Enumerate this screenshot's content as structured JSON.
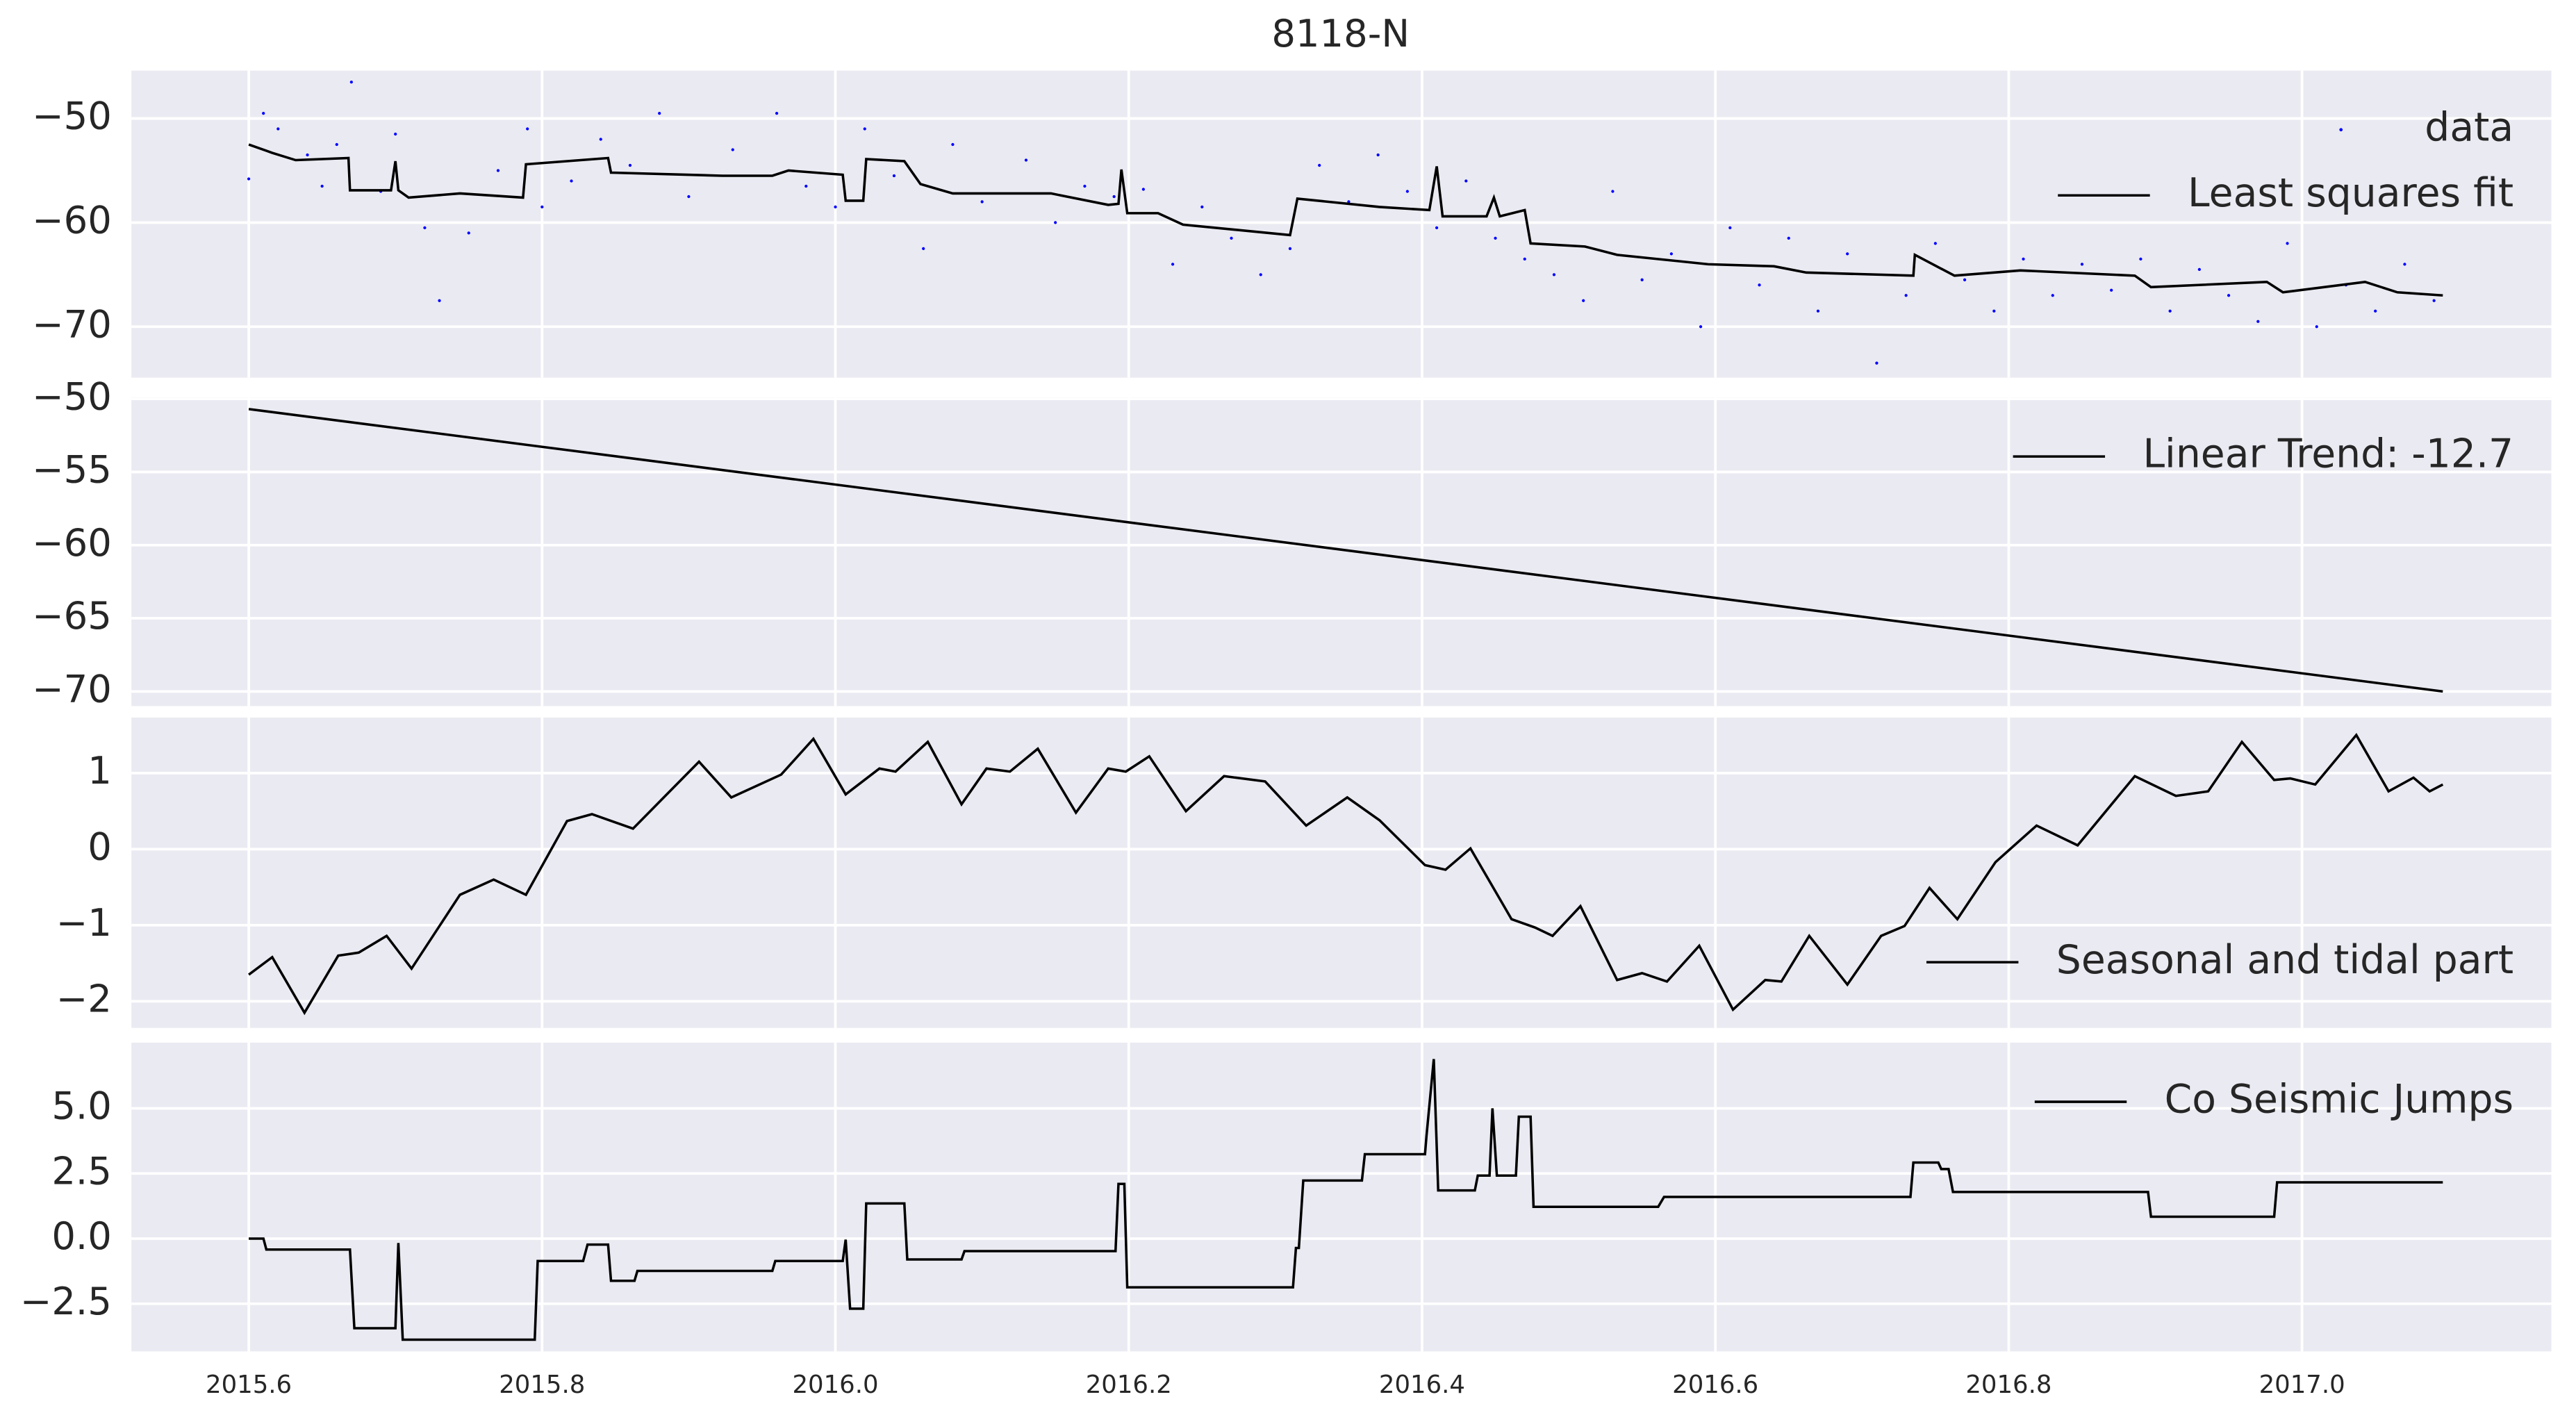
{
  "chart_data": [
    {
      "type": "line",
      "title": "8118-N",
      "ylim": [
        -74.9,
        -45.4
      ],
      "grid": true,
      "legend": "upper right",
      "yticks": [
        {
          "value": -50,
          "label": "−50"
        },
        {
          "value": -60,
          "label": "−60"
        },
        {
          "value": -70,
          "label": "−70"
        }
      ],
      "series": [
        {
          "name": "data",
          "kind": "scatter",
          "color": "#0000ff",
          "x": [
            2015.6,
            2015.61,
            2015.62,
            2015.64,
            2015.65,
            2015.66,
            2015.67,
            2015.69,
            2015.7,
            2015.72,
            2015.73,
            2015.75,
            2015.77,
            2015.79,
            2015.8,
            2015.82,
            2015.84,
            2015.86,
            2015.88,
            2015.9,
            2015.93,
            2015.96,
            2015.98,
            2016.0,
            2016.02,
            2016.04,
            2016.06,
            2016.08,
            2016.1,
            2016.13,
            2016.15,
            2016.17,
            2016.19,
            2016.21,
            2016.23,
            2016.25,
            2016.27,
            2016.29,
            2016.31,
            2016.33,
            2016.35,
            2016.37,
            2016.39,
            2016.41,
            2016.43,
            2016.45,
            2016.47,
            2016.49,
            2016.51,
            2016.53,
            2016.55,
            2016.57,
            2016.59,
            2016.61,
            2016.63,
            2016.65,
            2016.67,
            2016.69,
            2016.71,
            2016.73,
            2016.75,
            2016.77,
            2016.79,
            2016.81,
            2016.83,
            2016.85,
            2016.87,
            2016.89,
            2016.91,
            2016.93,
            2016.95,
            2016.97,
            2016.99,
            2017.01,
            2017.03,
            2017.05,
            2017.07,
            2017.09
          ],
          "values": [
            -55.8,
            -49.5,
            -51.0,
            -53.5,
            -56.5,
            -52.5,
            -46.5,
            -57.0,
            -51.5,
            -60.5,
            -67.5,
            -61.0,
            -55.0,
            -51.0,
            -58.5,
            -56.0,
            -52.0,
            -54.5,
            -49.5,
            -57.5,
            -53.0,
            -49.5,
            -56.5,
            -58.5,
            -51.0,
            -55.5,
            -62.5,
            -52.5,
            -58.0,
            -54.0,
            -60.0,
            -56.5,
            -57.5,
            -56.8,
            -64.0,
            -58.5,
            -61.5,
            -65.0,
            -62.5,
            -54.5,
            -58.0,
            -53.5,
            -57.0,
            -60.5,
            -56.0,
            -61.5,
            -63.5,
            -65.0,
            -67.5,
            -57.0,
            -65.5,
            -63.0,
            -70.0,
            -60.5,
            -66.0,
            -61.5,
            -68.5,
            -63.0,
            -73.5,
            -67.0,
            -62.0,
            -65.5,
            -68.5,
            -63.5,
            -67.0,
            -64.0,
            -66.5,
            -63.5,
            -68.5,
            -64.5,
            -67.0,
            -69.5,
            -62.0,
            -70.0,
            -66.0,
            -68.5,
            -64.0,
            -67.5
          ]
        },
        {
          "name": "Least squares fit",
          "kind": "line",
          "color": "#000000",
          "x": [
            2015.6,
            2015.616,
            2015.632,
            2015.668,
            2015.669,
            2015.697,
            2015.7,
            2015.702,
            2015.709,
            2015.744,
            2015.787,
            2015.789,
            2015.845,
            2015.847,
            2015.923,
            2015.957,
            2015.968,
            2016.005,
            2016.007,
            2016.019,
            2016.021,
            2016.047,
            2016.058,
            2016.08,
            2016.147,
            2016.186,
            2016.193,
            2016.195,
            2016.199,
            2016.22,
            2016.237,
            2016.31,
            2016.315,
            2016.371,
            2016.405,
            2016.41,
            2016.414,
            2016.444,
            2016.449,
            2016.453,
            2016.47,
            2016.474,
            2016.511,
            2016.533,
            2016.595,
            2016.64,
            2016.662,
            2016.735,
            2016.736,
            2016.763,
            2016.808,
            2016.886,
            2016.897,
            2016.976,
            2016.987,
            2017.043,
            2017.065,
            2017.096
          ],
          "values": [
            -52.5,
            -53.3,
            -54.0,
            -53.8,
            -56.9,
            -56.9,
            -54.1,
            -56.9,
            -57.6,
            -57.2,
            -57.6,
            -54.4,
            -53.8,
            -55.2,
            -55.5,
            -55.5,
            -55.0,
            -55.4,
            -57.9,
            -57.9,
            -53.9,
            -54.1,
            -56.3,
            -57.2,
            -57.2,
            -58.3,
            -58.2,
            -54.9,
            -59.1,
            -59.1,
            -60.2,
            -61.2,
            -57.7,
            -58.5,
            -58.8,
            -54.6,
            -59.4,
            -59.4,
            -57.6,
            -59.4,
            -58.8,
            -62.0,
            -62.3,
            -63.1,
            -64.0,
            -64.2,
            -64.8,
            -65.1,
            -63.1,
            -65.1,
            -64.6,
            -65.1,
            -66.2,
            -65.7,
            -66.7,
            -65.7,
            -66.7,
            -67.0
          ]
        }
      ]
    },
    {
      "type": "line",
      "ylim": [
        -71,
        -49.9
      ],
      "grid": true,
      "legend": "upper right",
      "yticks": [
        {
          "value": -50,
          "label": "−50"
        },
        {
          "value": -55,
          "label": "−55"
        },
        {
          "value": -60,
          "label": "−60"
        },
        {
          "value": -65,
          "label": "−65"
        },
        {
          "value": -70,
          "label": "−70"
        }
      ],
      "series": [
        {
          "name": "Linear Trend: -12.7",
          "kind": "line",
          "color": "#000000",
          "x": [
            2015.6,
            2017.096
          ],
          "values": [
            -50.7,
            -70.0
          ]
        }
      ]
    },
    {
      "type": "line",
      "ylim": [
        -2.35,
        1.73
      ],
      "grid": true,
      "legend": "lower right",
      "yticks": [
        1,
        0,
        {
          "value": -1,
          "label": "−1"
        },
        {
          "value": -2,
          "label": "−2"
        }
      ],
      "series": [
        {
          "name": "Seasonal and tidal part",
          "kind": "line",
          "color": "#000000",
          "x": [
            2015.6,
            2015.616,
            2015.638,
            2015.661,
            2015.675,
            2015.694,
            2015.711,
            2015.744,
            2015.767,
            2015.789,
            2015.817,
            2015.834,
            2015.862,
            2015.907,
            2015.929,
            2015.963,
            2015.985,
            2016.007,
            2016.03,
            2016.041,
            2016.063,
            2016.086,
            2016.103,
            2016.119,
            2016.138,
            2016.164,
            2016.186,
            2016.198,
            2016.214,
            2016.239,
            2016.265,
            2016.293,
            2016.321,
            2016.349,
            2016.371,
            2016.402,
            2016.416,
            2016.433,
            2016.461,
            2016.477,
            2016.489,
            2016.508,
            2016.533,
            2016.55,
            2016.567,
            2016.589,
            2016.612,
            2016.634,
            2016.645,
            2016.664,
            2016.69,
            2016.713,
            2016.729,
            2016.746,
            2016.765,
            2016.791,
            2016.819,
            2016.847,
            2016.886,
            2016.914,
            2016.936,
            2016.959,
            2016.981,
            2016.992,
            2017.009,
            2017.037,
            2017.059,
            2017.076,
            2017.087,
            2017.096
          ],
          "values": [
            -1.65,
            -1.42,
            -2.15,
            -1.4,
            -1.36,
            -1.14,
            -1.57,
            -0.6,
            -0.4,
            -0.6,
            0.37,
            0.46,
            0.27,
            1.15,
            0.68,
            0.98,
            1.45,
            0.72,
            1.06,
            1.02,
            1.41,
            0.59,
            1.06,
            1.02,
            1.32,
            0.48,
            1.06,
            1.02,
            1.22,
            0.5,
            0.96,
            0.89,
            0.31,
            0.68,
            0.38,
            -0.21,
            -0.27,
            0.01,
            -0.92,
            -1.03,
            -1.14,
            -0.75,
            -1.72,
            -1.63,
            -1.74,
            -1.27,
            -2.11,
            -1.72,
            -1.74,
            -1.14,
            -1.78,
            -1.14,
            -1.01,
            -0.51,
            -0.92,
            -0.17,
            0.31,
            0.05,
            0.96,
            0.7,
            0.76,
            1.41,
            0.91,
            0.93,
            0.85,
            1.5,
            0.76,
            0.94,
            0.76,
            0.85
          ]
        }
      ]
    },
    {
      "type": "line",
      "ylim": [
        -4.33,
        7.52
      ],
      "grid": true,
      "legend": "upper right",
      "xlim": [
        2015.52,
        2017.17
      ],
      "xticks": [
        2015.6,
        2015.8,
        {
          "value": 2016,
          "label": "2016.0"
        },
        2016.2,
        2016.4,
        2016.6,
        2016.8,
        {
          "value": 2017,
          "label": "2017.0"
        }
      ],
      "yticks": [
        {
          "value": 5,
          "label": "5.0"
        },
        {
          "value": 2.5,
          "label": "2.5"
        },
        {
          "value": 0,
          "label": "0.0"
        },
        {
          "value": -2.5,
          "label": "−2.5"
        }
      ],
      "series": [
        {
          "name": "Co Seismic Jumps",
          "kind": "line",
          "color": "#000000",
          "x": [
            2015.6,
            2015.61,
            2015.612,
            2015.669,
            2015.672,
            2015.7,
            2015.702,
            2015.705,
            2015.795,
            2015.797,
            2015.828,
            2015.831,
            2015.845,
            2015.847,
            2015.863,
            2015.865,
            2015.957,
            2015.959,
            2016.005,
            2016.007,
            2016.01,
            2016.019,
            2016.021,
            2016.047,
            2016.049,
            2016.086,
            2016.088,
            2016.191,
            2016.193,
            2016.197,
            2016.199,
            2016.312,
            2016.314,
            2016.316,
            2016.319,
            2016.359,
            2016.361,
            2016.402,
            2016.403,
            2016.408,
            2016.411,
            2016.436,
            2016.438,
            2016.446,
            2016.448,
            2016.451,
            2016.464,
            2016.466,
            2016.474,
            2016.476,
            2016.561,
            2016.565,
            2016.733,
            2016.735,
            2016.752,
            2016.754,
            2016.759,
            2016.762,
            2016.895,
            2016.897,
            2016.981,
            2016.983,
            2017.096
          ],
          "values": [
            0,
            0,
            -0.42,
            -0.42,
            -3.44,
            -3.44,
            -0.17,
            -3.88,
            -3.88,
            -0.86,
            -0.86,
            -0.23,
            -0.23,
            -1.62,
            -1.62,
            -1.24,
            -1.24,
            -0.86,
            -0.86,
            -0.04,
            -2.69,
            -2.69,
            1.35,
            1.35,
            -0.8,
            -0.8,
            -0.48,
            -0.48,
            2.1,
            2.1,
            -1.87,
            -1.87,
            -0.36,
            -0.36,
            2.23,
            2.23,
            3.24,
            3.24,
            3.93,
            6.89,
            1.85,
            1.85,
            2.42,
            2.42,
            5.0,
            2.42,
            2.42,
            4.68,
            4.68,
            1.22,
            1.22,
            1.6,
            1.6,
            2.92,
            2.92,
            2.67,
            2.67,
            1.79,
            1.79,
            0.84,
            0.84,
            2.16,
            2.16
          ]
        }
      ]
    }
  ]
}
